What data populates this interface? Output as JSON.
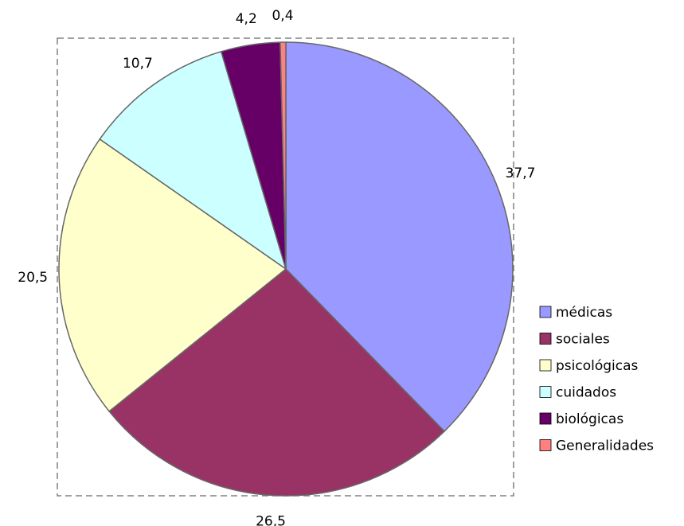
{
  "chart_data": {
    "type": "pie",
    "categories": [
      "médicas",
      "sociales",
      "psicológicas",
      "cuidados",
      "biológicas",
      "Generalidades"
    ],
    "values": [
      37.7,
      26.5,
      20.5,
      10.7,
      4.2,
      0.4
    ],
    "value_labels": [
      "37,7",
      "26,5",
      "20,5",
      "10,7",
      "4,2",
      "0,4"
    ],
    "colors": [
      "#9999ff",
      "#993366",
      "#ffffcc",
      "#ccffff",
      "#660066",
      "#ff8080"
    ],
    "legend": "right"
  }
}
